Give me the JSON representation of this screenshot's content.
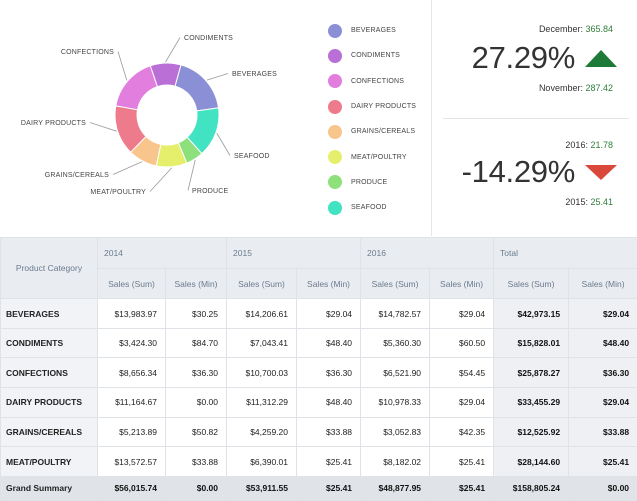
{
  "donut": {
    "categories": [
      {
        "label": "BEVERAGES",
        "color": "#8a8fd6",
        "value": 18.5
      },
      {
        "label": "SEAFOOD",
        "color": "#41e3c2",
        "value": 15.5
      },
      {
        "label": "PRODUCE",
        "color": "#8ee07c",
        "value": 5.5
      },
      {
        "label": "MEAT/POULTRY",
        "color": "#e6ef6c",
        "value": 9.5
      },
      {
        "label": "GRAINS/CEREALS",
        "color": "#f8c68c",
        "value": 9.0
      },
      {
        "label": "DAIRY PRODUCTS",
        "color": "#ee7b8c",
        "value": 15.5
      },
      {
        "label": "CONFECTIONS",
        "color": "#e27ede",
        "value": 17.0
      },
      {
        "label": "CONDIMENTS",
        "color": "#b96fd6",
        "value": 9.5
      }
    ]
  },
  "legend": [
    {
      "label": "BEVERAGES",
      "color": "#8a8fd6"
    },
    {
      "label": "CONDIMENTS",
      "color": "#b96fd6"
    },
    {
      "label": "CONFECTIONS",
      "color": "#e27ede"
    },
    {
      "label": "DAIRY PRODUCTS",
      "color": "#ee7b8c"
    },
    {
      "label": "GRAINS/CEREALS",
      "color": "#f8c68c"
    },
    {
      "label": "MEAT/POULTRY",
      "color": "#e6ef6c"
    },
    {
      "label": "PRODUCE",
      "color": "#8ee07c"
    },
    {
      "label": "SEAFOOD",
      "color": "#41e3c2"
    }
  ],
  "kpi1": {
    "top_label": "December:",
    "top_value": "365.84",
    "percent": "27.29%",
    "bottom_label": "November:",
    "bottom_value": "287.42",
    "trend": "up"
  },
  "kpi2": {
    "top_label": "2016:",
    "top_value": "21.78",
    "percent": "-14.29%",
    "bottom_label": "2015:",
    "bottom_value": "25.41",
    "trend": "down"
  },
  "pivot": {
    "row_header": "Product Category",
    "years": [
      "2014",
      "2015",
      "2016"
    ],
    "total_label": "Total",
    "measures": [
      "Sales (Sum)",
      "Sales (Min)"
    ],
    "rows": [
      {
        "category": "BEVERAGES",
        "values": [
          "$13,983.97",
          "$30.25",
          "$14,206.61",
          "$29.04",
          "$14,782.57",
          "$29.04"
        ],
        "totals": [
          "$42,973.15",
          "$29.04"
        ]
      },
      {
        "category": "CONDIMENTS",
        "values": [
          "$3,424.30",
          "$84.70",
          "$7,043.41",
          "$48.40",
          "$5,360.30",
          "$60.50"
        ],
        "totals": [
          "$15,828.01",
          "$48.40"
        ]
      },
      {
        "category": "CONFECTIONS",
        "values": [
          "$8,656.34",
          "$36.30",
          "$10,700.03",
          "$36.30",
          "$6,521.90",
          "$54.45"
        ],
        "totals": [
          "$25,878.27",
          "$36.30"
        ]
      },
      {
        "category": "DAIRY PRODUCTS",
        "values": [
          "$11,164.67",
          "$0.00",
          "$11,312.29",
          "$48.40",
          "$10,978.33",
          "$29.04"
        ],
        "totals": [
          "$33,455.29",
          "$29.04"
        ]
      },
      {
        "category": "GRAINS/CEREALS",
        "values": [
          "$5,213.89",
          "$50.82",
          "$4,259.20",
          "$33.88",
          "$3,052.83",
          "$42.35"
        ],
        "totals": [
          "$12,525.92",
          "$33.88"
        ]
      },
      {
        "category": "MEAT/POULTRY",
        "values": [
          "$13,572.57",
          "$33.88",
          "$6,390.01",
          "$25.41",
          "$8,182.02",
          "$25.41"
        ],
        "totals": [
          "$28,144.60",
          "$25.41"
        ]
      }
    ],
    "grand_summary": {
      "label": "Grand Summary",
      "values": [
        "$56,015.74",
        "$0.00",
        "$53,911.55",
        "$25.41",
        "$48,877.95",
        "$25.41"
      ],
      "totals": [
        "$158,805.24",
        "$0.00"
      ]
    }
  }
}
